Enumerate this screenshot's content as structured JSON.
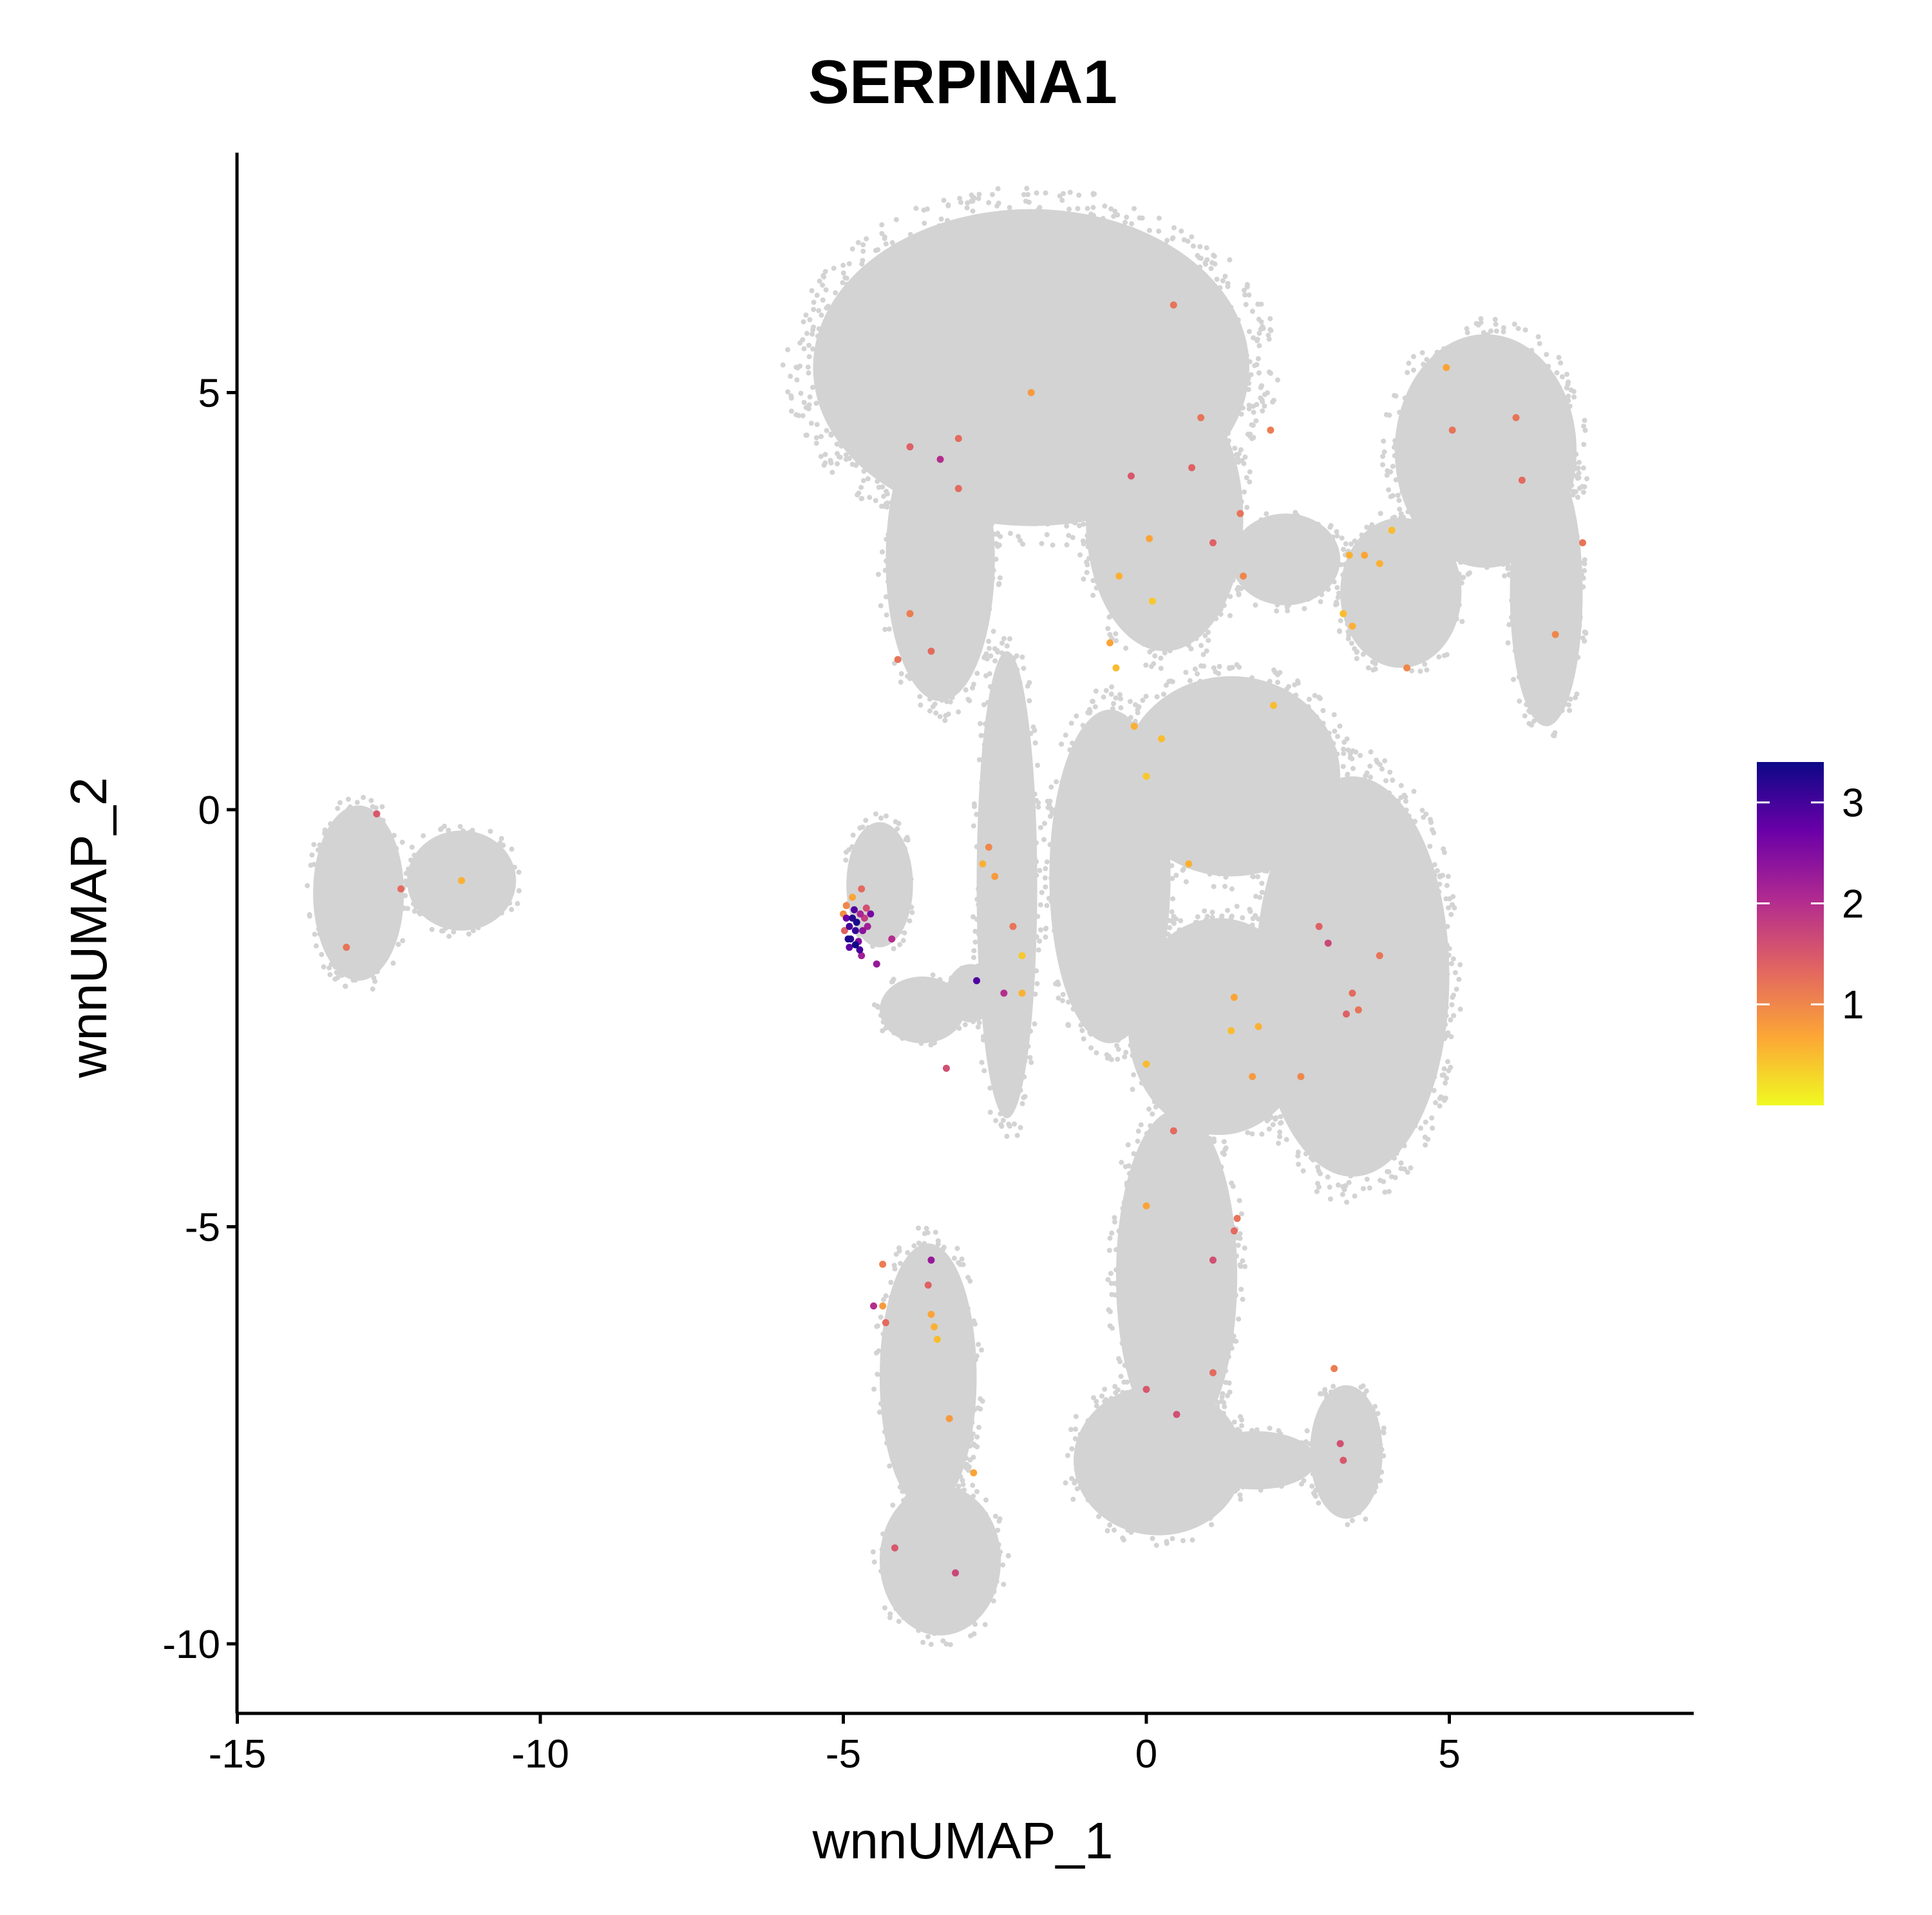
{
  "chart_data": {
    "type": "scatter",
    "title": "SERPINA1",
    "xlabel": "wnnUMAP_1",
    "ylabel": "wnnUMAP_2",
    "xlim": [
      -15.2,
      9.0
    ],
    "ylim": [
      -10.8,
      7.9
    ],
    "xticks": [
      -15,
      -10,
      -5,
      0,
      5
    ],
    "yticks": [
      -10,
      -5,
      0,
      5
    ],
    "xtick_labels": [
      "-15",
      "-10",
      "-5",
      "0",
      "5"
    ],
    "ytick_labels": [
      "-10",
      "-5",
      "0",
      "5"
    ],
    "grid": false,
    "background_color": "#d3d3d3",
    "colorscale": {
      "name": "plasma",
      "min": 0.0,
      "max": 3.4,
      "ticks": [
        1,
        2,
        3
      ],
      "tick_labels": [
        "1",
        "2",
        "3"
      ],
      "colors": [
        "#f0f921",
        "#fca636",
        "#e16462",
        "#b12a90",
        "#6a00a8",
        "#0d0887"
      ],
      "legend_position": "right"
    },
    "background_clusters": [
      {
        "cx": -13.0,
        "cy": -1.0,
        "rx": 0.75,
        "ry": 1.05
      },
      {
        "cx": -11.3,
        "cy": -0.85,
        "rx": 0.9,
        "ry": 0.6
      },
      {
        "cx": -1.9,
        "cy": 5.3,
        "rx": 3.6,
        "ry": 1.9
      },
      {
        "cx": 0.3,
        "cy": 3.5,
        "rx": 1.3,
        "ry": 1.6
      },
      {
        "cx": -3.4,
        "cy": 3.0,
        "rx": 0.9,
        "ry": 1.7
      },
      {
        "cx": 2.3,
        "cy": 3.0,
        "rx": 0.9,
        "ry": 0.55
      },
      {
        "cx": 5.6,
        "cy": 4.3,
        "rx": 1.5,
        "ry": 1.4
      },
      {
        "cx": 6.6,
        "cy": 2.6,
        "rx": 0.6,
        "ry": 1.6
      },
      {
        "cx": 4.2,
        "cy": 2.6,
        "rx": 1.0,
        "ry": 0.9
      },
      {
        "cx": 1.4,
        "cy": 0.4,
        "rx": 1.8,
        "ry": 1.2
      },
      {
        "cx": 3.4,
        "cy": -2.0,
        "rx": 1.6,
        "ry": 2.4
      },
      {
        "cx": 1.2,
        "cy": -2.6,
        "rx": 1.5,
        "ry": 1.3
      },
      {
        "cx": -0.6,
        "cy": -0.8,
        "rx": 1.0,
        "ry": 2.0
      },
      {
        "cx": -2.3,
        "cy": -0.9,
        "rx": 0.5,
        "ry": 2.8
      },
      {
        "cx": 0.5,
        "cy": -5.6,
        "rx": 1.0,
        "ry": 2.0
      },
      {
        "cx": 0.2,
        "cy": -7.8,
        "rx": 1.4,
        "ry": 0.9
      },
      {
        "cx": 3.3,
        "cy": -7.7,
        "rx": 0.6,
        "ry": 0.8
      },
      {
        "cx": 1.8,
        "cy": -7.8,
        "rx": 1.0,
        "ry": 0.35
      },
      {
        "cx": -3.6,
        "cy": -6.8,
        "rx": 0.8,
        "ry": 1.6
      },
      {
        "cx": -3.4,
        "cy": -9.0,
        "rx": 1.0,
        "ry": 0.9
      },
      {
        "cx": -4.4,
        "cy": -0.9,
        "rx": 0.55,
        "ry": 0.75
      },
      {
        "cx": -2.9,
        "cy": -2.2,
        "rx": 0.4,
        "ry": 0.35
      },
      {
        "cx": -3.7,
        "cy": -2.4,
        "rx": 0.7,
        "ry": 0.4
      }
    ],
    "points": [
      {
        "x": -12.7,
        "y": -0.05,
        "v": 1.5
      },
      {
        "x": -12.3,
        "y": -0.95,
        "v": 1.3
      },
      {
        "x": -11.3,
        "y": -0.85,
        "v": 0.6
      },
      {
        "x": -13.2,
        "y": -1.65,
        "v": 1.2
      },
      {
        "x": 0.45,
        "y": 6.05,
        "v": 1.2
      },
      {
        "x": -1.9,
        "y": 5.0,
        "v": 0.8
      },
      {
        "x": -3.1,
        "y": 4.45,
        "v": 1.3
      },
      {
        "x": -3.9,
        "y": 4.35,
        "v": 1.4
      },
      {
        "x": -3.4,
        "y": 4.2,
        "v": 2.0
      },
      {
        "x": -3.1,
        "y": 3.85,
        "v": 1.3
      },
      {
        "x": 0.9,
        "y": 4.7,
        "v": 1.2
      },
      {
        "x": 2.05,
        "y": 4.55,
        "v": 1.1
      },
      {
        "x": -0.25,
        "y": 4.0,
        "v": 1.5
      },
      {
        "x": 0.75,
        "y": 4.1,
        "v": 1.4
      },
      {
        "x": 1.55,
        "y": 3.55,
        "v": 1.2
      },
      {
        "x": 1.1,
        "y": 3.2,
        "v": 1.4
      },
      {
        "x": 0.05,
        "y": 3.25,
        "v": 0.7
      },
      {
        "x": 1.6,
        "y": 2.8,
        "v": 1.0
      },
      {
        "x": -0.45,
        "y": 2.8,
        "v": 0.6
      },
      {
        "x": 0.1,
        "y": 2.5,
        "v": 0.4
      },
      {
        "x": -0.6,
        "y": 2.0,
        "v": 0.7
      },
      {
        "x": -0.5,
        "y": 1.7,
        "v": 0.5
      },
      {
        "x": -3.9,
        "y": 2.35,
        "v": 1.1
      },
      {
        "x": -4.1,
        "y": 1.8,
        "v": 1.2
      },
      {
        "x": -3.55,
        "y": 1.9,
        "v": 1.3
      },
      {
        "x": -0.2,
        "y": 1.0,
        "v": 0.6
      },
      {
        "x": 0.25,
        "y": 0.85,
        "v": 0.5
      },
      {
        "x": 2.1,
        "y": 1.25,
        "v": 0.5
      },
      {
        "x": 0.0,
        "y": 0.4,
        "v": 0.4
      },
      {
        "x": 0.7,
        "y": -0.65,
        "v": 0.6
      },
      {
        "x": 3.35,
        "y": 3.05,
        "v": 0.6
      },
      {
        "x": 3.6,
        "y": 3.05,
        "v": 0.7
      },
      {
        "x": 4.05,
        "y": 3.35,
        "v": 0.5
      },
      {
        "x": 3.85,
        "y": 2.95,
        "v": 0.6
      },
      {
        "x": 3.25,
        "y": 2.35,
        "v": 0.5
      },
      {
        "x": 3.4,
        "y": 2.2,
        "v": 0.6
      },
      {
        "x": 4.3,
        "y": 1.7,
        "v": 1.0
      },
      {
        "x": 4.95,
        "y": 5.3,
        "v": 0.7
      },
      {
        "x": 5.05,
        "y": 4.55,
        "v": 1.2
      },
      {
        "x": 6.1,
        "y": 4.7,
        "v": 1.2
      },
      {
        "x": 6.2,
        "y": 3.95,
        "v": 1.3
      },
      {
        "x": 7.2,
        "y": 3.2,
        "v": 1.2
      },
      {
        "x": 6.75,
        "y": 2.1,
        "v": 1.0
      },
      {
        "x": -2.6,
        "y": -0.45,
        "v": 1.0
      },
      {
        "x": -2.7,
        "y": -0.65,
        "v": 0.6
      },
      {
        "x": -2.5,
        "y": -0.8,
        "v": 0.8
      },
      {
        "x": -2.2,
        "y": -1.4,
        "v": 1.2
      },
      {
        "x": -2.05,
        "y": -1.75,
        "v": 0.4
      },
      {
        "x": -2.35,
        "y": -2.2,
        "v": 2.0
      },
      {
        "x": -2.05,
        "y": -2.2,
        "v": 0.6
      },
      {
        "x": -2.8,
        "y": -2.05,
        "v": 2.9
      },
      {
        "x": -3.3,
        "y": -3.1,
        "v": 1.6
      },
      {
        "x": -4.2,
        "y": -1.55,
        "v": 2.0
      },
      {
        "x": -4.45,
        "y": -1.85,
        "v": 2.3
      },
      {
        "x": -4.7,
        "y": -0.95,
        "v": 1.3
      },
      {
        "x": -4.55,
        "y": -1.25,
        "v": 2.6
      },
      {
        "x": -4.85,
        "y": -1.05,
        "v": 0.7
      },
      {
        "x": -4.95,
        "y": -1.15,
        "v": 1.0
      },
      {
        "x": -4.95,
        "y": -1.3,
        "v": 2.7
      },
      {
        "x": -4.85,
        "y": -1.3,
        "v": 3.2
      },
      {
        "x": -4.78,
        "y": -1.35,
        "v": 3.3
      },
      {
        "x": -4.9,
        "y": -1.4,
        "v": 3.0
      },
      {
        "x": -4.8,
        "y": -1.45,
        "v": 3.1
      },
      {
        "x": -4.72,
        "y": -1.25,
        "v": 2.1
      },
      {
        "x": -4.68,
        "y": -1.45,
        "v": 2.4
      },
      {
        "x": -4.88,
        "y": -1.55,
        "v": 3.2
      },
      {
        "x": -4.8,
        "y": -1.62,
        "v": 3.4
      },
      {
        "x": -4.9,
        "y": -1.65,
        "v": 2.8
      },
      {
        "x": -4.75,
        "y": -1.58,
        "v": 2.5
      },
      {
        "x": -4.65,
        "y": -1.3,
        "v": 1.8
      },
      {
        "x": -4.6,
        "y": -1.4,
        "v": 2.2
      },
      {
        "x": -4.98,
        "y": -1.45,
        "v": 1.4
      },
      {
        "x": -4.7,
        "y": -1.75,
        "v": 2.2
      },
      {
        "x": -5.0,
        "y": -1.25,
        "v": 0.9
      },
      {
        "x": -4.62,
        "y": -1.18,
        "v": 1.6
      },
      {
        "x": -4.82,
        "y": -1.2,
        "v": 2.9
      },
      {
        "x": -4.92,
        "y": -1.55,
        "v": 3.3
      },
      {
        "x": -4.73,
        "y": -1.68,
        "v": 3.0
      },
      {
        "x": 1.45,
        "y": -2.25,
        "v": 0.7
      },
      {
        "x": 1.85,
        "y": -2.6,
        "v": 0.6
      },
      {
        "x": 1.4,
        "y": -2.65,
        "v": 0.5
      },
      {
        "x": 0.0,
        "y": -3.05,
        "v": 0.5
      },
      {
        "x": 1.75,
        "y": -3.2,
        "v": 0.8
      },
      {
        "x": 2.55,
        "y": -3.2,
        "v": 1.0
      },
      {
        "x": 2.85,
        "y": -1.4,
        "v": 1.4
      },
      {
        "x": 3.0,
        "y": -1.6,
        "v": 1.7
      },
      {
        "x": 3.85,
        "y": -1.75,
        "v": 1.2
      },
      {
        "x": 3.4,
        "y": -2.2,
        "v": 1.3
      },
      {
        "x": 3.5,
        "y": -2.4,
        "v": 1.2
      },
      {
        "x": 3.3,
        "y": -2.45,
        "v": 1.4
      },
      {
        "x": 0.45,
        "y": -3.85,
        "v": 1.3
      },
      {
        "x": 0.0,
        "y": -4.75,
        "v": 0.7
      },
      {
        "x": 1.5,
        "y": -4.9,
        "v": 1.2
      },
      {
        "x": 1.45,
        "y": -5.05,
        "v": 1.3
      },
      {
        "x": 1.1,
        "y": -5.4,
        "v": 1.6
      },
      {
        "x": 1.1,
        "y": -6.75,
        "v": 1.3
      },
      {
        "x": 0.0,
        "y": -6.95,
        "v": 1.5
      },
      {
        "x": 0.5,
        "y": -7.25,
        "v": 1.6
      },
      {
        "x": 3.1,
        "y": -6.7,
        "v": 1.1
      },
      {
        "x": 3.2,
        "y": -7.6,
        "v": 1.6
      },
      {
        "x": 3.25,
        "y": -7.8,
        "v": 1.5
      },
      {
        "x": -4.35,
        "y": -5.45,
        "v": 1.1
      },
      {
        "x": -3.55,
        "y": -5.4,
        "v": 2.3
      },
      {
        "x": -3.6,
        "y": -5.7,
        "v": 1.4
      },
      {
        "x": -4.5,
        "y": -5.95,
        "v": 2.0
      },
      {
        "x": -4.35,
        "y": -5.95,
        "v": 0.8
      },
      {
        "x": -4.3,
        "y": -6.15,
        "v": 1.3
      },
      {
        "x": -3.55,
        "y": -6.05,
        "v": 0.7
      },
      {
        "x": -3.5,
        "y": -6.2,
        "v": 0.6
      },
      {
        "x": -3.45,
        "y": -6.35,
        "v": 0.5
      },
      {
        "x": -3.25,
        "y": -7.3,
        "v": 0.8
      },
      {
        "x": -2.85,
        "y": -7.95,
        "v": 0.7
      },
      {
        "x": -4.15,
        "y": -8.85,
        "v": 1.5
      },
      {
        "x": -3.15,
        "y": -9.15,
        "v": 1.7
      }
    ]
  }
}
